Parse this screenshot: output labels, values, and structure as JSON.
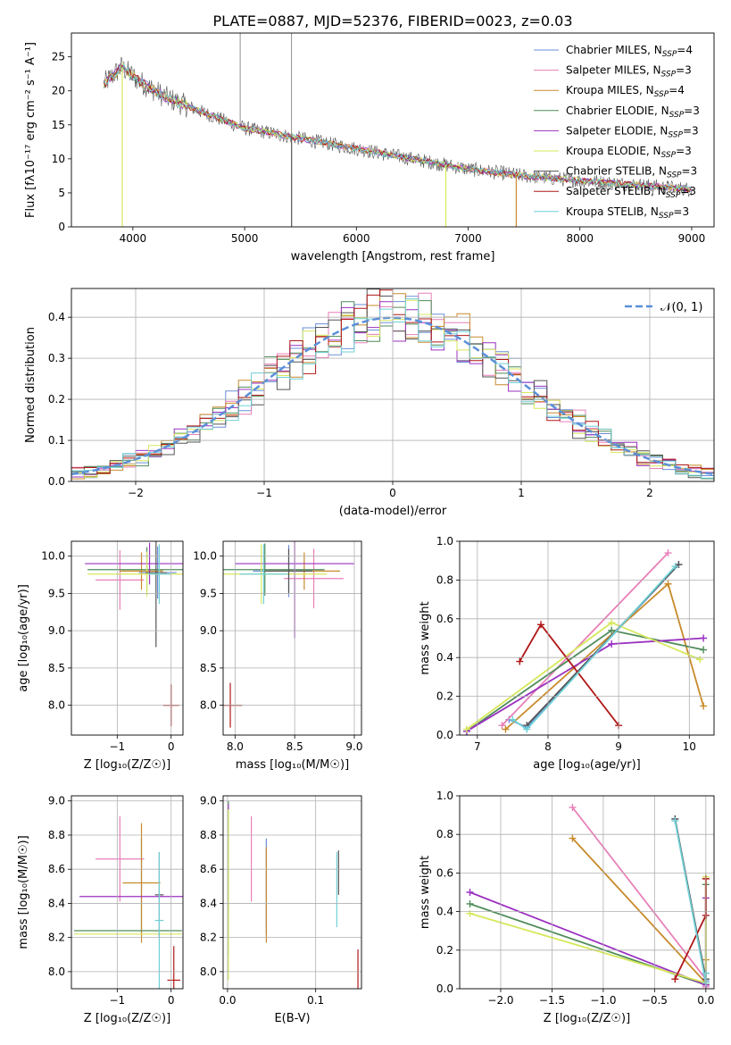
{
  "title": "PLATE=0887, MJD=52376, FIBERID=0023, z=0.03",
  "series": [
    {
      "name": "Chabrier MILES",
      "nssp": "4",
      "color": "#6a8fd8"
    },
    {
      "name": "Salpeter MILES",
      "nssp": "3",
      "color": "#e87fb8"
    },
    {
      "name": "Kroupa MILES",
      "nssp": "4",
      "color": "#c88a2a"
    },
    {
      "name": "Chabrier ELODIE",
      "nssp": "3",
      "color": "#4f8c5a"
    },
    {
      "name": "Salpeter ELODIE",
      "nssp": "3",
      "color": "#9a30c0"
    },
    {
      "name": "Kroupa ELODIE",
      "nssp": "3",
      "color": "#d6e85a"
    },
    {
      "name": "Chabrier STELIB",
      "nssp": "3",
      "color": "#555555"
    },
    {
      "name": "Salpeter STELIB",
      "nssp": "3",
      "color": "#b01818"
    },
    {
      "name": "Kroupa STELIB",
      "nssp": "3",
      "color": "#6fd0d6"
    }
  ],
  "chart_data": [
    {
      "id": "spectrum",
      "type": "line",
      "xlabel": "wavelength [Angstrom, rest frame]",
      "ylabel": "Flux [fλ10⁻¹⁷ erg cm⁻² s⁻¹ A⁻¹]",
      "xlim": [
        3450,
        9200
      ],
      "ylim": [
        0,
        28.5
      ],
      "xticks": [
        4000,
        5000,
        6000,
        7000,
        8000,
        9000
      ],
      "yticks": [
        0,
        5,
        10,
        15,
        20,
        25
      ],
      "data_range": [
        3740,
        9010
      ],
      "continuum": {
        "x": [
          3740,
          3900,
          4050,
          4300,
          4600,
          5000,
          5500,
          6000,
          6500,
          7000,
          7500,
          8000,
          8500,
          9000
        ],
        "y": [
          21,
          23.5,
          21.5,
          19,
          17,
          14.5,
          13,
          11.5,
          10,
          8.5,
          7.5,
          6.8,
          6.2,
          5.5
        ]
      },
      "spikes": [
        {
          "x": 4960,
          "y": 28.5
        },
        {
          "x": 5420,
          "y": 28.5
        },
        {
          "x": 7320,
          "y": 9
        }
      ],
      "dips": [
        {
          "x": 3905,
          "y": 0,
          "color": "#d6e85a"
        },
        {
          "x": 5420,
          "y": 0,
          "color": "#555555"
        },
        {
          "x": 6800,
          "y": 0,
          "color": "#d6e85a"
        },
        {
          "x": 7430,
          "y": 0,
          "color": "#c88a2a"
        }
      ]
    },
    {
      "id": "residual-hist",
      "type": "histogram",
      "xlabel": "(data-model)/error",
      "ylabel": "Normed distribution",
      "xlim": [
        -2.5,
        2.5
      ],
      "ylim": [
        0,
        0.47
      ],
      "xticks": [
        -2,
        -1,
        0,
        1,
        2
      ],
      "xtick_labels": [
        "−2",
        "−1",
        "0",
        "1",
        "2"
      ],
      "yticks": [
        0.0,
        0.1,
        0.2,
        0.3,
        0.4
      ],
      "bin_width": 0.1,
      "grid": true,
      "legend_position": "top-right",
      "reference": {
        "label": "𝒩(0, 1)",
        "mu": 0,
        "sigma": 1,
        "color": "#5b8fd8"
      }
    },
    {
      "id": "age-vs-z",
      "type": "errorbar",
      "xlabel": "Z [log₁₀(Z/Z☉)]",
      "ylabel": "age  [log₁₀(age/yr)]",
      "xlim": [
        -1.85,
        0.22
      ],
      "ylim": [
        7.6,
        10.2
      ],
      "xticks": [
        -1,
        0
      ],
      "xtick_labels": [
        "−1",
        "0"
      ],
      "yticks": [
        8.0,
        8.5,
        9.0,
        9.5,
        10.0
      ],
      "points": [
        {
          "s": 0,
          "x": -0.25,
          "y": 9.78,
          "xerr": 0.35,
          "yerr": 0.35
        },
        {
          "s": 1,
          "x": -0.95,
          "y": 9.68,
          "xerr": 0.45,
          "yerr": 0.4
        },
        {
          "s": 2,
          "x": -0.55,
          "y": 9.8,
          "xerr": 0.4,
          "yerr": 0.25
        },
        {
          "s": 3,
          "x": -0.45,
          "y": 9.82,
          "xerr": 1.1,
          "yerr": 0.3
        },
        {
          "s": 4,
          "x": -0.4,
          "y": 9.9,
          "xerr": 1.2,
          "yerr": 0.28
        },
        {
          "s": 5,
          "x": -0.45,
          "y": 9.76,
          "xerr": 1.1,
          "yerr": 0.3
        },
        {
          "s": 6,
          "x": -0.28,
          "y": 9.78,
          "xerr": 0.2,
          "yerr": 1.0
        },
        {
          "s": 7,
          "x": 0.0,
          "y": 8.0,
          "xerr": 0.15,
          "yerr": 0.28
        },
        {
          "s": 8,
          "x": -0.22,
          "y": 9.76,
          "xerr": 0.2,
          "yerr": 0.4
        }
      ]
    },
    {
      "id": "age-vs-mass",
      "type": "errorbar",
      "xlabel": "mass [log₁₀(M/M☉)]",
      "ylabel": "",
      "xlim": [
        7.9,
        9.06
      ],
      "ylim": [
        7.6,
        10.2
      ],
      "xticks": [
        8.0,
        8.5,
        9.0
      ],
      "yticks": [
        8.0,
        8.5,
        9.0,
        9.5,
        10.0
      ],
      "points": [
        {
          "s": 0,
          "x": 8.45,
          "y": 9.8,
          "xerr": 0.3,
          "yerr": 0.35
        },
        {
          "s": 1,
          "x": 8.66,
          "y": 9.7,
          "xerr": 0.25,
          "yerr": 0.4
        },
        {
          "s": 2,
          "x": 8.58,
          "y": 9.8,
          "xerr": 0.3,
          "yerr": 0.25
        },
        {
          "s": 3,
          "x": 8.25,
          "y": 9.82,
          "xerr": 0.5,
          "yerr": 0.35
        },
        {
          "s": 4,
          "x": 8.5,
          "y": 9.9,
          "xerr": 0.5,
          "yerr": 1.0
        },
        {
          "s": 5,
          "x": 8.22,
          "y": 9.76,
          "xerr": 0.55,
          "yerr": 0.4
        },
        {
          "s": 6,
          "x": 8.45,
          "y": 9.8,
          "xerr": 0.2,
          "yerr": 0.3
        },
        {
          "s": 7,
          "x": 7.96,
          "y": 8.0,
          "xerr": 0.1,
          "yerr": 0.3
        },
        {
          "s": 8,
          "x": 8.24,
          "y": 9.76,
          "xerr": 0.2,
          "yerr": 0.4
        }
      ]
    },
    {
      "id": "weight-vs-age",
      "type": "line",
      "xlabel": "age  [log₁₀(age/yr)]",
      "ylabel": "mass weight",
      "xlim": [
        6.75,
        10.35
      ],
      "ylim": [
        0,
        1.0
      ],
      "xticks": [
        7,
        8,
        9,
        10
      ],
      "yticks": [
        0.0,
        0.2,
        0.4,
        0.6,
        0.8,
        1.0
      ],
      "lines": [
        {
          "s": 0,
          "x": [
            7.45,
            7.7,
            9.85
          ],
          "y": [
            0.08,
            0.04,
            0.88
          ]
        },
        {
          "s": 1,
          "x": [
            7.35,
            9.7
          ],
          "y": [
            0.05,
            0.94
          ]
        },
        {
          "s": 2,
          "x": [
            7.4,
            9.7,
            10.2
          ],
          "y": [
            0.03,
            0.78,
            0.15
          ]
        },
        {
          "s": 3,
          "x": [
            6.85,
            8.9,
            10.2
          ],
          "y": [
            0.02,
            0.54,
            0.44
          ]
        },
        {
          "s": 4,
          "x": [
            6.85,
            8.9,
            10.2
          ],
          "y": [
            0.02,
            0.47,
            0.5
          ]
        },
        {
          "s": 5,
          "x": [
            6.85,
            8.9,
            10.15
          ],
          "y": [
            0.03,
            0.58,
            0.39
          ]
        },
        {
          "s": 6,
          "x": [
            7.7,
            9.85
          ],
          "y": [
            0.05,
            0.88
          ]
        },
        {
          "s": 7,
          "x": [
            7.6,
            7.9,
            9.0
          ],
          "y": [
            0.38,
            0.57,
            0.05
          ]
        },
        {
          "s": 8,
          "x": [
            7.5,
            7.7,
            9.8
          ],
          "y": [
            0.08,
            0.03,
            0.87
          ]
        }
      ]
    },
    {
      "id": "mass-vs-z",
      "type": "errorbar",
      "xlabel": "Z [log₁₀(Z/Z☉)]",
      "ylabel": "mass [log₁₀(M/M☉)]",
      "xlim": [
        -1.85,
        0.22
      ],
      "ylim": [
        7.9,
        9.03
      ],
      "xticks": [
        -1,
        0
      ],
      "xtick_labels": [
        "−1",
        "0"
      ],
      "yticks": [
        8.0,
        8.2,
        8.4,
        8.6,
        8.8,
        9.0
      ],
      "points": [
        {
          "s": 0,
          "x": -0.55,
          "y": 8.5,
          "xerr": 0.0,
          "yerr": 0.28
        },
        {
          "s": 1,
          "x": -0.95,
          "y": 8.66,
          "xerr": 0.45,
          "yerr": 0.25
        },
        {
          "s": 2,
          "x": -0.55,
          "y": 8.52,
          "xerr": 0.35,
          "yerr": 0.35
        },
        {
          "s": 3,
          "x": -0.8,
          "y": 8.24,
          "xerr": 1.0,
          "yerr": 0.0
        },
        {
          "s": 4,
          "x": -0.7,
          "y": 8.44,
          "xerr": 1.0,
          "yerr": 0.0
        },
        {
          "s": 5,
          "x": -0.8,
          "y": 8.22,
          "xerr": 1.0,
          "yerr": 0.0
        },
        {
          "s": 6,
          "x": -0.22,
          "y": 8.45,
          "xerr": 0.08,
          "yerr": 0.25
        },
        {
          "s": 7,
          "x": 0.05,
          "y": 7.95,
          "xerr": 0.12,
          "yerr": 0.2
        },
        {
          "s": 8,
          "x": -0.22,
          "y": 8.3,
          "xerr": 0.08,
          "yerr": 0.4
        }
      ]
    },
    {
      "id": "mass-vs-ebv",
      "type": "errorbar",
      "xlabel": "E(B-V)",
      "ylabel": "",
      "xlim": [
        -0.005,
        0.152
      ],
      "ylim": [
        7.9,
        9.03
      ],
      "xticks": [
        0.0,
        0.1
      ],
      "yticks": [
        8.0,
        8.2,
        8.4,
        8.6,
        8.8,
        9.0
      ],
      "points": [
        {
          "s": 0,
          "x": 0.044,
          "y": 8.5,
          "xerr": 0,
          "yerr": 0.28
        },
        {
          "s": 1,
          "x": 0.027,
          "y": 8.66,
          "xerr": 0,
          "yerr": 0.25
        },
        {
          "s": 2,
          "x": 0.044,
          "y": 8.45,
          "xerr": 0,
          "yerr": 0.28
        },
        {
          "s": 3,
          "x": 0.001,
          "y": 8.55,
          "xerr": 0,
          "yerr": 0.45
        },
        {
          "s": 4,
          "x": 0.001,
          "y": 8.6,
          "xerr": 0,
          "yerr": 0.38
        },
        {
          "s": 5,
          "x": 0.001,
          "y": 8.45,
          "xerr": 0,
          "yerr": 0.5
        },
        {
          "s": 6,
          "x": 0.126,
          "y": 8.58,
          "xerr": 0,
          "yerr": 0.13
        },
        {
          "s": 7,
          "x": 0.148,
          "y": 7.95,
          "xerr": 0,
          "yerr": 0.18
        },
        {
          "s": 8,
          "x": 0.124,
          "y": 8.48,
          "xerr": 0,
          "yerr": 0.22
        }
      ]
    },
    {
      "id": "weight-vs-z",
      "type": "line",
      "xlabel": "Z [log₁₀(Z/Z☉)]",
      "ylabel": "mass weight",
      "xlim": [
        -2.4,
        0.08
      ],
      "ylim": [
        0,
        1.0
      ],
      "xticks": [
        -2.0,
        -1.5,
        -1.0,
        -0.5,
        0.0
      ],
      "xtick_labels": [
        "−2.0",
        "−1.5",
        "−1.0",
        "−0.5",
        "0.0"
      ],
      "yticks": [
        0.0,
        0.2,
        0.4,
        0.6,
        0.8,
        1.0
      ],
      "lines": [
        {
          "s": 0,
          "x": [
            -0.3,
            0.0,
            0.0
          ],
          "y": [
            0.88,
            0.04,
            0.08
          ]
        },
        {
          "s": 1,
          "x": [
            -1.3,
            0.0,
            0.0
          ],
          "y": [
            0.94,
            0.05,
            0.01
          ]
        },
        {
          "s": 2,
          "x": [
            -1.3,
            0.0,
            0.0
          ],
          "y": [
            0.78,
            0.03,
            0.15
          ]
        },
        {
          "s": 3,
          "x": [
            -2.3,
            0.0,
            0.0
          ],
          "y": [
            0.44,
            0.02,
            0.54
          ]
        },
        {
          "s": 4,
          "x": [
            -2.3,
            0.0,
            0.0
          ],
          "y": [
            0.5,
            0.02,
            0.47
          ]
        },
        {
          "s": 5,
          "x": [
            -2.3,
            0.0,
            0.0
          ],
          "y": [
            0.39,
            0.03,
            0.58
          ]
        },
        {
          "s": 6,
          "x": [
            -0.3,
            0.0
          ],
          "y": [
            0.88,
            0.05
          ]
        },
        {
          "s": 7,
          "x": [
            -0.3,
            0.0,
            0.0
          ],
          "y": [
            0.05,
            0.38,
            0.57
          ]
        },
        {
          "s": 8,
          "x": [
            -0.3,
            0.0,
            0.0
          ],
          "y": [
            0.87,
            0.03,
            0.08
          ]
        }
      ]
    }
  ]
}
